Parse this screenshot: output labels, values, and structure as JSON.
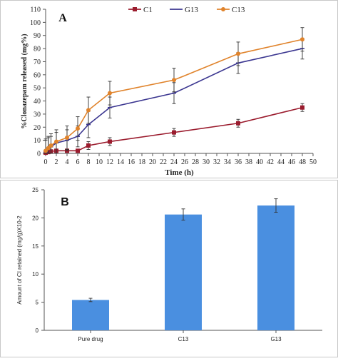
{
  "chart_data": [
    {
      "type": "line",
      "panel_label": "A",
      "xlabel": "Time (h)",
      "ylabel": "%Clonazepam released (mg%)",
      "xlim": [
        0,
        50
      ],
      "ylim": [
        0,
        110
      ],
      "x_ticks": [
        0,
        2,
        4,
        6,
        8,
        10,
        12,
        14,
        16,
        18,
        20,
        22,
        24,
        26,
        28,
        30,
        32,
        34,
        36,
        38,
        40,
        42,
        44,
        46,
        48,
        50
      ],
      "y_ticks": [
        0,
        10,
        20,
        30,
        40,
        50,
        60,
        70,
        80,
        90,
        100,
        110
      ],
      "grid": false,
      "legend_position": "top",
      "x": [
        0,
        0.5,
        1,
        2,
        4,
        6,
        8,
        12,
        24,
        36,
        48
      ],
      "series": [
        {
          "name": "C1",
          "color": "#9b1c2e",
          "marker": "square",
          "values": [
            0.5,
            1,
            1.5,
            2,
            2,
            2,
            6,
            9,
            16,
            23,
            35
          ],
          "errors": [
            1,
            1,
            1,
            1,
            1,
            1,
            3,
            3,
            3,
            3,
            3
          ]
        },
        {
          "name": "G13",
          "color": "#3b3690",
          "marker": "line",
          "values": [
            1,
            3,
            5,
            8,
            10,
            13,
            22,
            35,
            46,
            69,
            80
          ],
          "errors": [
            9,
            9,
            8,
            8,
            8,
            8,
            10,
            8,
            8,
            8,
            8
          ]
        },
        {
          "name": "C13",
          "color": "#e0832b",
          "marker": "circle",
          "values": [
            2,
            4,
            6,
            9,
            12,
            19,
            33,
            46,
            56,
            76,
            87
          ],
          "errors": [
            9,
            9,
            9,
            9,
            9,
            9,
            10,
            9,
            9,
            9,
            9
          ]
        }
      ]
    },
    {
      "type": "bar",
      "panel_label": "B",
      "xlabel": "",
      "ylabel": "Amount of CI retained (mg/g)X10-2",
      "ylim": [
        0,
        25
      ],
      "y_ticks": [
        0,
        5,
        10,
        15,
        20,
        25
      ],
      "grid": false,
      "bar_color": "#4a8fe0",
      "categories": [
        "Pure drug",
        "C13",
        "G13"
      ],
      "values": [
        5.4,
        20.6,
        22.2
      ],
      "errors": [
        0.3,
        1.0,
        1.2
      ]
    }
  ]
}
